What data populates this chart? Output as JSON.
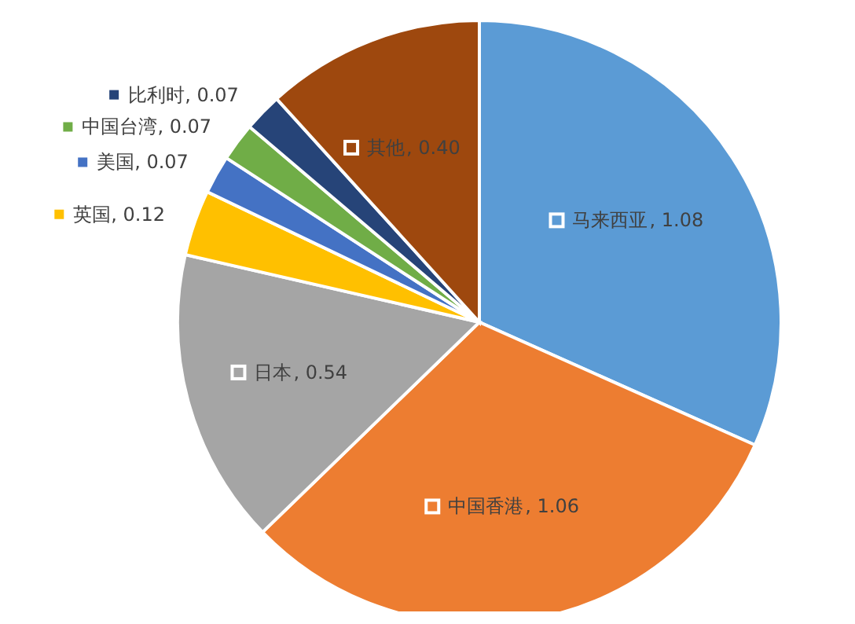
{
  "chart_data": {
    "type": "pie",
    "categories": [
      "马来西亚",
      "中国香港",
      "日本",
      "英国",
      "美国",
      "中国台湾",
      "比利时",
      "其他"
    ],
    "values": [
      1.08,
      1.06,
      0.54,
      0.12,
      0.07,
      0.07,
      0.07,
      0.4
    ],
    "colors": [
      "#5b9bd5",
      "#ed7d31",
      "#a5a5a5",
      "#ffc000",
      "#4472c4",
      "#70ad47",
      "#264478",
      "#9e480e"
    ],
    "legend": "top left",
    "value_labels": [
      ", 1.08",
      ", 1.06",
      ", 0.54",
      ", 0.12",
      ", 0.07",
      ", 0.07",
      ", 0.07",
      ", 0.40"
    ]
  }
}
